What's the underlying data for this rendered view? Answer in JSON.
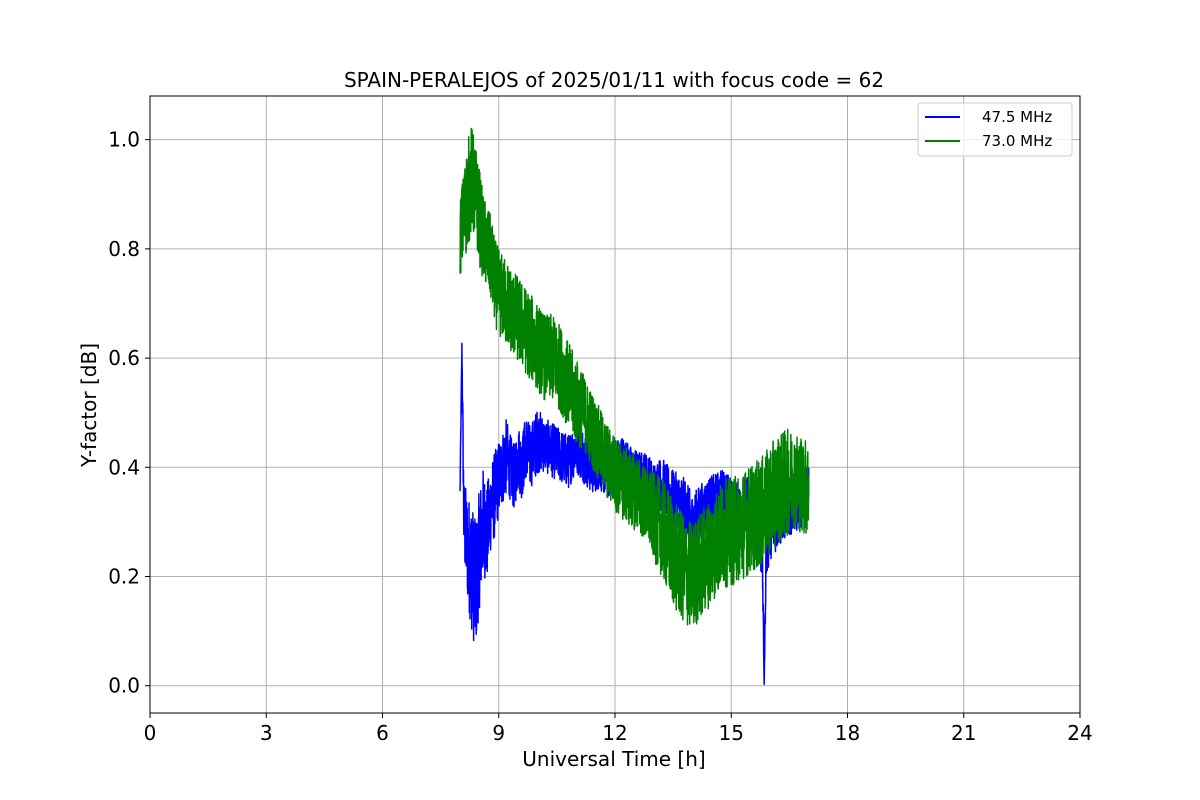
{
  "chart_data": {
    "type": "line",
    "title": "SPAIN-PERALEJOS of 2025/01/11 with focus code = 62",
    "xlabel": "Universal Time [h]",
    "ylabel": "Y-factor [dB]",
    "xlim": [
      0,
      24
    ],
    "ylim": [
      -0.05,
      1.08
    ],
    "x_ticks": [
      0,
      3,
      6,
      9,
      12,
      15,
      18,
      21,
      24
    ],
    "x_tick_labels": [
      "0",
      "3",
      "6",
      "9",
      "12",
      "15",
      "18",
      "21",
      "24"
    ],
    "y_ticks": [
      0.0,
      0.2,
      0.4,
      0.6,
      0.8,
      1.0
    ],
    "y_tick_labels": [
      "0.0",
      "0.2",
      "0.4",
      "0.6",
      "0.8",
      "1.0"
    ],
    "grid": true,
    "legend_position": "top-right",
    "series": [
      {
        "name": "47.5 MHz",
        "color": "#0000ff",
        "x": [
          8.0,
          8.05,
          8.1,
          8.2,
          8.3,
          8.4,
          8.5,
          8.6,
          8.7,
          8.8,
          8.9,
          9.0,
          9.1,
          9.2,
          9.3,
          9.4,
          9.5,
          9.6,
          9.7,
          9.8,
          9.9,
          10.0,
          10.2,
          10.4,
          10.6,
          10.8,
          11.0,
          11.2,
          11.4,
          11.6,
          11.8,
          12.0,
          12.2,
          12.4,
          12.6,
          12.8,
          13.0,
          13.2,
          13.4,
          13.6,
          13.8,
          14.0,
          14.2,
          14.4,
          14.6,
          14.8,
          15.0,
          15.2,
          15.4,
          15.6,
          15.8,
          15.85,
          15.9,
          16.0,
          16.2,
          16.4,
          16.6,
          16.8,
          17.0
        ],
        "y": [
          0.35,
          0.62,
          0.3,
          0.25,
          0.22,
          0.18,
          0.25,
          0.3,
          0.28,
          0.33,
          0.35,
          0.38,
          0.4,
          0.42,
          0.4,
          0.38,
          0.42,
          0.4,
          0.44,
          0.42,
          0.43,
          0.45,
          0.44,
          0.43,
          0.42,
          0.41,
          0.44,
          0.42,
          0.4,
          0.41,
          0.39,
          0.4,
          0.41,
          0.39,
          0.38,
          0.38,
          0.36,
          0.37,
          0.35,
          0.34,
          0.33,
          0.3,
          0.32,
          0.33,
          0.34,
          0.35,
          0.33,
          0.32,
          0.34,
          0.3,
          0.25,
          0.0,
          0.25,
          0.28,
          0.3,
          0.32,
          0.33,
          0.34,
          0.36
        ],
        "noise": [
          0.02,
          0.02,
          0.08,
          0.1,
          0.12,
          0.12,
          0.11,
          0.1,
          0.09,
          0.08,
          0.08,
          0.07,
          0.07,
          0.07,
          0.06,
          0.06,
          0.06,
          0.06,
          0.06,
          0.06,
          0.06,
          0.06,
          0.05,
          0.05,
          0.05,
          0.05,
          0.05,
          0.05,
          0.05,
          0.05,
          0.05,
          0.05,
          0.05,
          0.05,
          0.05,
          0.05,
          0.05,
          0.05,
          0.05,
          0.05,
          0.05,
          0.05,
          0.05,
          0.05,
          0.05,
          0.05,
          0.05,
          0.05,
          0.05,
          0.05,
          0.06,
          0.0,
          0.06,
          0.05,
          0.05,
          0.05,
          0.05,
          0.05,
          0.05
        ]
      },
      {
        "name": "73.0 MHz",
        "color": "#008000",
        "x": [
          8.0,
          8.1,
          8.2,
          8.3,
          8.4,
          8.5,
          8.6,
          8.7,
          8.8,
          8.9,
          9.0,
          9.2,
          9.4,
          9.6,
          9.8,
          10.0,
          10.2,
          10.4,
          10.6,
          10.8,
          11.0,
          11.2,
          11.4,
          11.6,
          11.8,
          12.0,
          12.2,
          12.4,
          12.6,
          12.8,
          13.0,
          13.2,
          13.4,
          13.6,
          13.8,
          14.0,
          14.2,
          14.4,
          14.6,
          14.8,
          15.0,
          15.2,
          15.4,
          15.6,
          15.8,
          16.0,
          16.2,
          16.4,
          16.6,
          16.8,
          17.0
        ],
        "y": [
          0.82,
          0.86,
          0.9,
          0.93,
          0.9,
          0.86,
          0.82,
          0.8,
          0.78,
          0.74,
          0.72,
          0.7,
          0.68,
          0.66,
          0.64,
          0.62,
          0.6,
          0.6,
          0.58,
          0.55,
          0.52,
          0.5,
          0.47,
          0.44,
          0.41,
          0.39,
          0.37,
          0.36,
          0.35,
          0.33,
          0.31,
          0.29,
          0.26,
          0.23,
          0.21,
          0.2,
          0.22,
          0.24,
          0.26,
          0.28,
          0.28,
          0.29,
          0.3,
          0.31,
          0.32,
          0.34,
          0.36,
          0.37,
          0.38,
          0.37,
          0.36
        ],
        "noise": [
          0.07,
          0.09,
          0.1,
          0.1,
          0.09,
          0.09,
          0.08,
          0.08,
          0.08,
          0.08,
          0.08,
          0.08,
          0.08,
          0.08,
          0.08,
          0.08,
          0.08,
          0.08,
          0.08,
          0.08,
          0.08,
          0.07,
          0.07,
          0.07,
          0.07,
          0.07,
          0.07,
          0.07,
          0.07,
          0.07,
          0.08,
          0.09,
          0.1,
          0.1,
          0.1,
          0.1,
          0.1,
          0.1,
          0.1,
          0.1,
          0.1,
          0.1,
          0.1,
          0.1,
          0.1,
          0.1,
          0.1,
          0.1,
          0.09,
          0.09,
          0.09
        ]
      }
    ]
  }
}
